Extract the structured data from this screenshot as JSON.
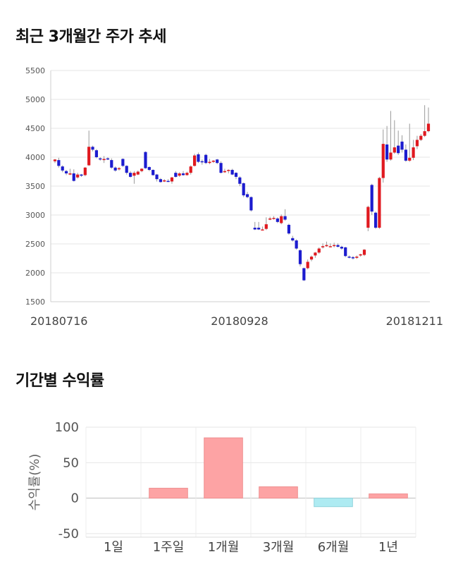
{
  "sections": {
    "price_title": "최근 3개월간 주가 추세",
    "return_title": "기간별 수익률"
  },
  "chart_data": [
    {
      "type": "candlestick",
      "title": "최근 3개월간 주가 추세",
      "ylim": [
        1500,
        5500
      ],
      "yticks": [
        1500,
        2000,
        2500,
        3000,
        3500,
        4000,
        4500,
        5000,
        5500
      ],
      "xtick_labels": [
        "20180716",
        "20180928",
        "20181211"
      ],
      "grid": true,
      "colors": {
        "up": "#e0191f",
        "down": "#1c1ccf",
        "wick": "#9a9a9a"
      },
      "candles": [
        [
          3930,
          3960,
          3970,
          3900
        ],
        [
          3950,
          3850,
          3990,
          3820
        ],
        [
          3840,
          3770,
          3860,
          3740
        ],
        [
          3760,
          3720,
          3780,
          3690
        ],
        [
          3700,
          3720,
          3800,
          3690
        ],
        [
          3720,
          3590,
          3790,
          3580
        ],
        [
          3650,
          3700,
          3730,
          3630
        ],
        [
          3700,
          3680,
          3710,
          3660
        ],
        [
          3690,
          3820,
          3830,
          3670
        ],
        [
          3860,
          4180,
          4460,
          3850
        ],
        [
          4180,
          4130,
          4200,
          4100
        ],
        [
          4120,
          4000,
          4140,
          3980
        ],
        [
          3980,
          3960,
          4000,
          3940
        ],
        [
          3950,
          3970,
          4020,
          3900
        ],
        [
          3980,
          3960,
          4000,
          3950
        ],
        [
          3950,
          3820,
          3980,
          3800
        ],
        [
          3820,
          3770,
          3840,
          3750
        ],
        [
          3790,
          3810,
          3830,
          3770
        ],
        [
          3970,
          3850,
          3980,
          3830
        ],
        [
          3850,
          3730,
          3860,
          3700
        ],
        [
          3730,
          3660,
          3760,
          3650
        ],
        [
          3680,
          3730,
          3760,
          3540
        ],
        [
          3700,
          3750,
          3770,
          3690
        ],
        [
          3760,
          3800,
          3810,
          3740
        ],
        [
          4090,
          3810,
          4100,
          3800
        ],
        [
          3830,
          3780,
          3840,
          3760
        ],
        [
          3780,
          3690,
          3790,
          3680
        ],
        [
          3700,
          3620,
          3710,
          3580
        ],
        [
          3620,
          3570,
          3640,
          3560
        ],
        [
          3580,
          3600,
          3620,
          3570
        ],
        [
          3590,
          3580,
          3620,
          3570
        ],
        [
          3580,
          3650,
          3660,
          3540
        ],
        [
          3730,
          3660,
          3760,
          3650
        ],
        [
          3680,
          3720,
          3740,
          3660
        ],
        [
          3720,
          3690,
          3760,
          3680
        ],
        [
          3690,
          3730,
          3750,
          3680
        ],
        [
          3730,
          3840,
          3860,
          3700
        ],
        [
          3850,
          4030,
          4060,
          3840
        ],
        [
          4050,
          3920,
          4080,
          3900
        ],
        [
          3930,
          3920,
          3960,
          3870
        ],
        [
          4040,
          3900,
          4060,
          3880
        ],
        [
          3900,
          3920,
          3970,
          3880
        ],
        [
          3920,
          3940,
          3950,
          3900
        ],
        [
          3960,
          3900,
          3970,
          3880
        ],
        [
          3900,
          3730,
          3930,
          3720
        ],
        [
          3740,
          3760,
          3800,
          3730
        ],
        [
          3770,
          3780,
          3790,
          3720
        ],
        [
          3780,
          3700,
          3800,
          3690
        ],
        [
          3730,
          3660,
          3740,
          3620
        ],
        [
          3650,
          3540,
          3670,
          3500
        ],
        [
          3550,
          3340,
          3560,
          3310
        ],
        [
          3360,
          3310,
          3400,
          3290
        ],
        [
          3310,
          3080,
          3320,
          3060
        ],
        [
          2780,
          2750,
          2880,
          2740
        ],
        [
          2780,
          2750,
          2880,
          2740
        ],
        [
          2740,
          2750,
          2800,
          2740
        ],
        [
          2760,
          2840,
          2960,
          2740
        ],
        [
          2920,
          2940,
          2970,
          2910
        ],
        [
          2950,
          2950,
          2980,
          2920
        ],
        [
          2940,
          2880,
          2960,
          2860
        ],
        [
          2860,
          2980,
          3010,
          2840
        ],
        [
          2980,
          2920,
          3100,
          2900
        ],
        [
          2830,
          2680,
          2850,
          2660
        ],
        [
          2600,
          2560,
          2640,
          2540
        ],
        [
          2560,
          2420,
          2580,
          2400
        ],
        [
          2390,
          2150,
          2410,
          2110
        ],
        [
          2080,
          1870,
          2090,
          1860
        ],
        [
          2080,
          2190,
          2230,
          2060
        ],
        [
          2230,
          2280,
          2300,
          2200
        ],
        [
          2300,
          2350,
          2360,
          2260
        ],
        [
          2350,
          2420,
          2440,
          2330
        ],
        [
          2440,
          2460,
          2510,
          2420
        ],
        [
          2460,
          2480,
          2540,
          2450
        ],
        [
          2460,
          2460,
          2510,
          2440
        ],
        [
          2470,
          2480,
          2520,
          2440
        ],
        [
          2480,
          2450,
          2510,
          2440
        ],
        [
          2450,
          2420,
          2470,
          2400
        ],
        [
          2440,
          2290,
          2450,
          2270
        ],
        [
          2280,
          2270,
          2300,
          2250
        ],
        [
          2270,
          2250,
          2290,
          2230
        ],
        [
          2260,
          2280,
          2300,
          2240
        ],
        [
          2300,
          2320,
          2330,
          2280
        ],
        [
          2310,
          2400,
          2410,
          2290
        ],
        [
          2780,
          3140,
          3160,
          2720
        ],
        [
          3520,
          3060,
          3540,
          3000
        ],
        [
          3040,
          2780,
          3060,
          2760
        ],
        [
          2780,
          3640,
          3660,
          2760
        ],
        [
          3640,
          4230,
          4480,
          3560
        ],
        [
          4220,
          3960,
          4540,
          3920
        ],
        [
          3960,
          4080,
          4800,
          3940
        ],
        [
          4080,
          4170,
          4640,
          4060
        ],
        [
          4200,
          4070,
          4460,
          4040
        ],
        [
          4270,
          4130,
          4380,
          4080
        ],
        [
          4130,
          3940,
          4220,
          3920
        ],
        [
          3940,
          3990,
          4580,
          3920
        ],
        [
          3990,
          4170,
          4300,
          3950
        ],
        [
          4190,
          4300,
          4370,
          4140
        ],
        [
          4300,
          4370,
          4400,
          4280
        ],
        [
          4370,
          4450,
          4900,
          4350
        ],
        [
          4450,
          4580,
          4860,
          4430
        ]
      ]
    },
    {
      "type": "bar",
      "title": "기간별 수익률",
      "ylabel": "수익률(%)",
      "categories": [
        "1일",
        "1주일",
        "1개월",
        "3개월",
        "6개월",
        "1년"
      ],
      "values": [
        0,
        14,
        85,
        16,
        -12,
        6
      ],
      "ylim": [
        -55,
        100
      ],
      "yticks": [
        100,
        50,
        0,
        -50
      ],
      "grid": true,
      "colors": {
        "positive": "#fda3a4",
        "negative": "#aeebf2"
      }
    }
  ]
}
